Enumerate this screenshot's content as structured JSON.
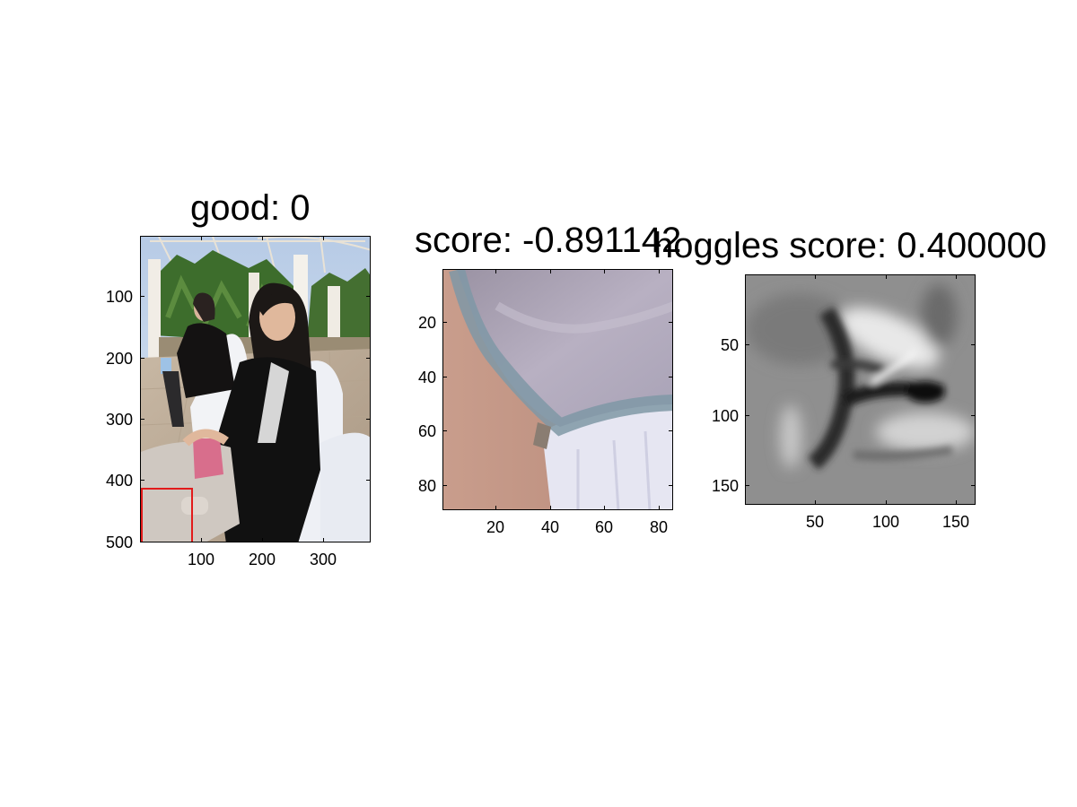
{
  "panels": {
    "photo": {
      "title": "good: 0",
      "yticks": [
        "100",
        "200",
        "300",
        "400",
        "500"
      ],
      "xticks": [
        "100",
        "200",
        "300"
      ],
      "bbox_color": "#e21b1b"
    },
    "crop": {
      "title": "score: -0.891142",
      "yticks": [
        "20",
        "40",
        "60",
        "80"
      ],
      "xticks": [
        "20",
        "40",
        "60",
        "80"
      ]
    },
    "hoggles": {
      "title": "hoggles score: 0.400000",
      "yticks": [
        "50",
        "100",
        "150"
      ],
      "xticks": [
        "50",
        "100",
        "150"
      ]
    }
  }
}
